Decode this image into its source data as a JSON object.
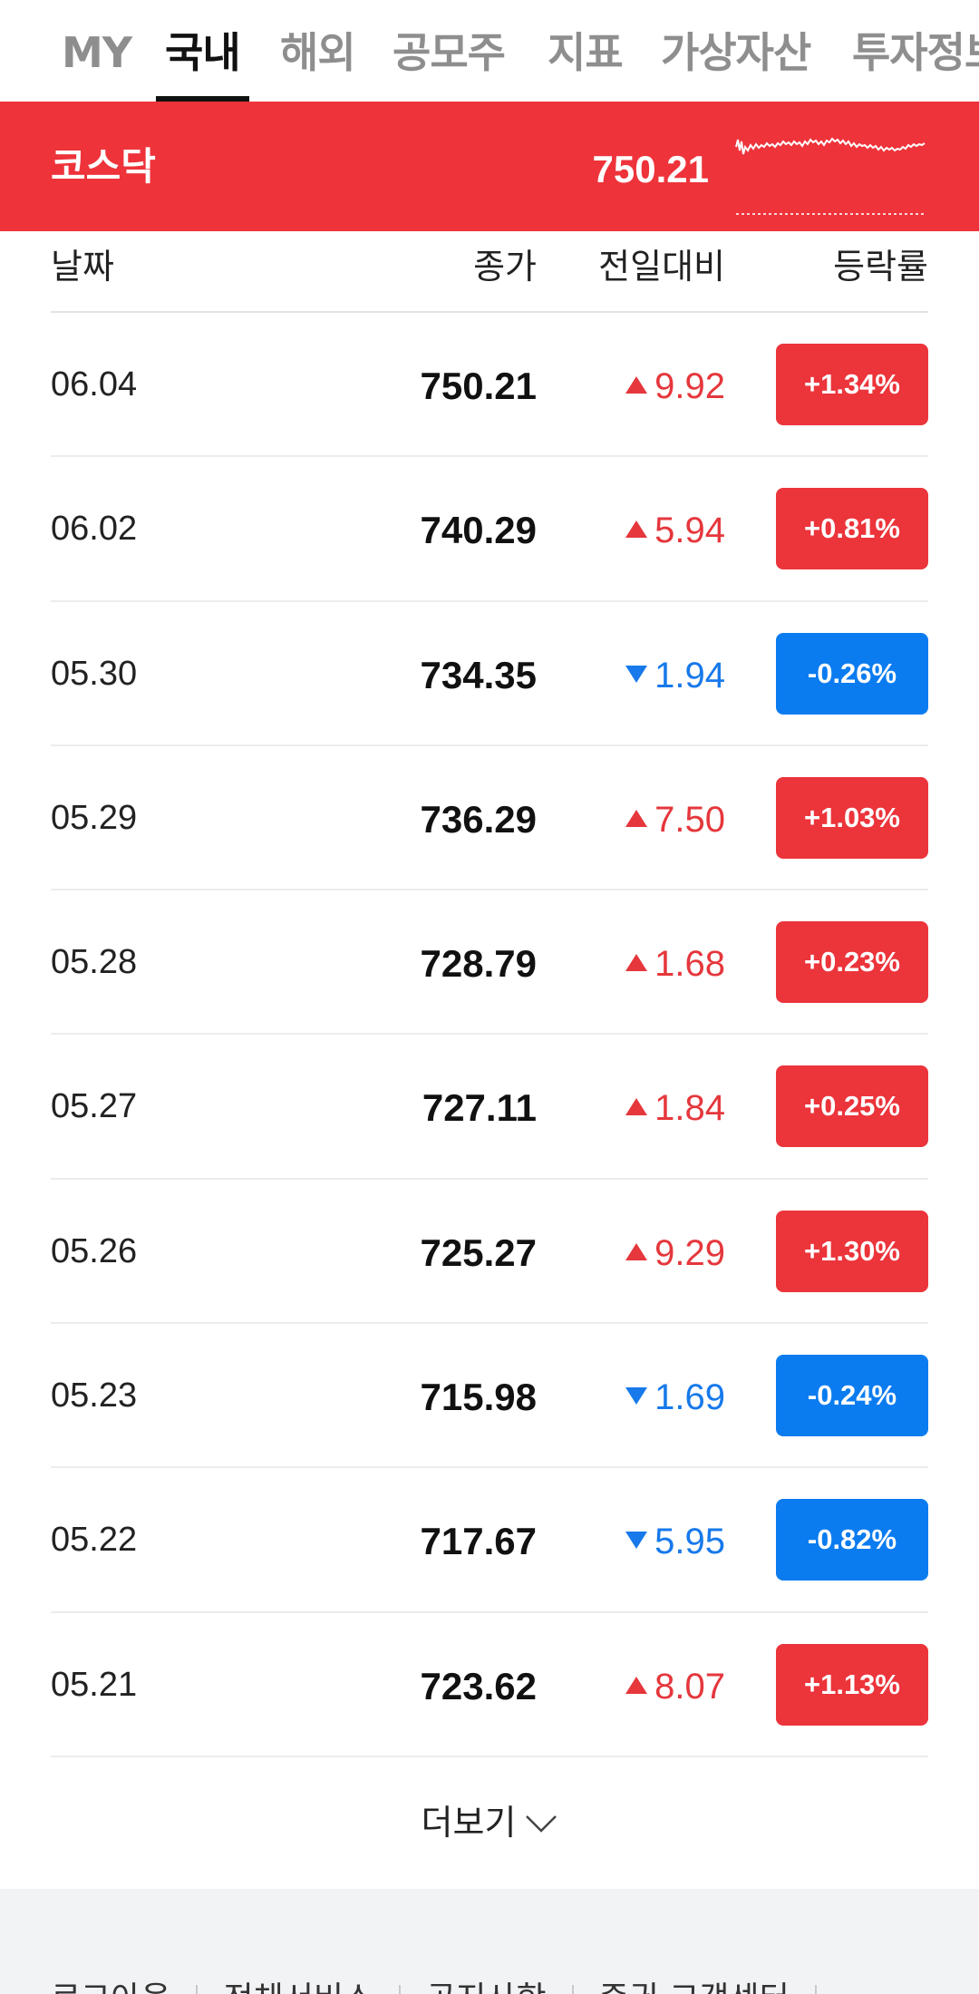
{
  "tabs": [
    {
      "label": "MY",
      "active": false
    },
    {
      "label": "국내",
      "active": true
    },
    {
      "label": "해외",
      "active": false
    },
    {
      "label": "공모주",
      "active": false
    },
    {
      "label": "지표",
      "active": false
    },
    {
      "label": "가상자산",
      "active": false
    },
    {
      "label": "투자정보",
      "active": false
    }
  ],
  "index": {
    "name": "코스닥",
    "value": "750.21"
  },
  "table": {
    "headers": {
      "date": "날짜",
      "close": "종가",
      "change": "전일대비",
      "rate": "등락률"
    },
    "rows": [
      {
        "date": "06.04",
        "close": "750.21",
        "change": "9.92",
        "dir": "up",
        "rate": "+1.34%"
      },
      {
        "date": "06.02",
        "close": "740.29",
        "change": "5.94",
        "dir": "up",
        "rate": "+0.81%"
      },
      {
        "date": "05.30",
        "close": "734.35",
        "change": "1.94",
        "dir": "down",
        "rate": "-0.26%"
      },
      {
        "date": "05.29",
        "close": "736.29",
        "change": "7.50",
        "dir": "up",
        "rate": "+1.03%"
      },
      {
        "date": "05.28",
        "close": "728.79",
        "change": "1.68",
        "dir": "up",
        "rate": "+0.23%"
      },
      {
        "date": "05.27",
        "close": "727.11",
        "change": "1.84",
        "dir": "up",
        "rate": "+0.25%"
      },
      {
        "date": "05.26",
        "close": "725.27",
        "change": "9.29",
        "dir": "up",
        "rate": "+1.30%"
      },
      {
        "date": "05.23",
        "close": "715.98",
        "change": "1.69",
        "dir": "down",
        "rate": "-0.24%"
      },
      {
        "date": "05.22",
        "close": "717.67",
        "change": "5.95",
        "dir": "down",
        "rate": "-0.82%"
      },
      {
        "date": "05.21",
        "close": "723.62",
        "change": "8.07",
        "dir": "up",
        "rate": "+1.13%"
      }
    ]
  },
  "more_label": "더보기",
  "footer": {
    "links": [
      "로그아웃",
      "전체서비스",
      "공지사항",
      "증권 고객센터"
    ]
  },
  "colors": {
    "up": "#ec343b",
    "down": "#0b7cf0",
    "banner": "#ee333a"
  }
}
